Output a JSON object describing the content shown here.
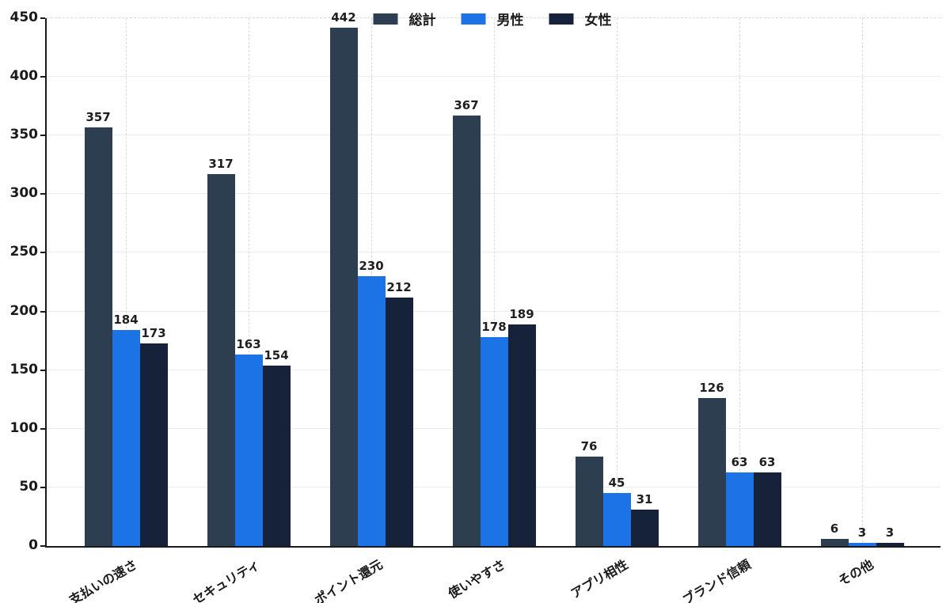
{
  "chart_data": {
    "type": "bar",
    "title": "",
    "xlabel": "",
    "ylabel": "",
    "categories": [
      "支払いの速さ",
      "セキュリティ",
      "ポイント還元",
      "使いやすさ",
      "アプリ相性",
      "ブランド信頼",
      "その他"
    ],
    "series": [
      {
        "name": "総計",
        "color": "#2d3e50",
        "values": [
          357,
          317,
          442,
          367,
          76,
          126,
          6
        ]
      },
      {
        "name": "男性",
        "color": "#1b73e5",
        "values": [
          184,
          163,
          230,
          178,
          45,
          63,
          3
        ]
      },
      {
        "name": "女性",
        "color": "#15223a",
        "values": [
          173,
          154,
          212,
          189,
          31,
          63,
          3
        ]
      }
    ],
    "ylim": [
      0,
      450
    ],
    "yticks": [
      0,
      50,
      100,
      150,
      200,
      250,
      300,
      350,
      400,
      450
    ],
    "grid": {
      "horizontal": "solid",
      "vertical": "dashed",
      "top_gridline_style": "dashed"
    },
    "legend_position": "top-center"
  },
  "style": {
    "axis_color": "#1a1a1a",
    "text_color": "#1a1a1a",
    "hgrid_color": "#ebebee",
    "vgrid_color": "#d9d9de",
    "background": "#ffffff"
  }
}
